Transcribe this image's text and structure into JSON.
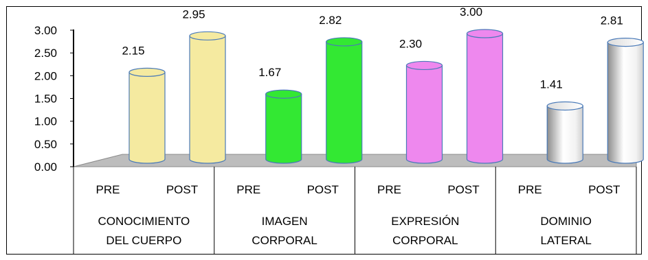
{
  "chart_data": {
    "type": "bar",
    "title": "",
    "xlabel": "",
    "ylabel": "",
    "ylim": [
      0,
      3
    ],
    "yticks": [
      "0.00",
      "0.50",
      "1.00",
      "1.50",
      "2.00",
      "2.50",
      "3.00"
    ],
    "grid": false,
    "legend": "none",
    "groups": [
      {
        "name_lines": [
          "CONOCIMIENTO",
          "DEL CUERPO"
        ],
        "color": "#f5eaa0",
        "bars": [
          {
            "label": "PRE",
            "value": 2.15,
            "value_label": "2.15"
          },
          {
            "label": "POST",
            "value": 2.95,
            "value_label": "2.95"
          }
        ]
      },
      {
        "name_lines": [
          "IMAGEN",
          "CORPORAL"
        ],
        "color": "#33e833",
        "bars": [
          {
            "label": "PRE",
            "value": 1.67,
            "value_label": "1.67"
          },
          {
            "label": "POST",
            "value": 2.82,
            "value_label": "2.82"
          }
        ]
      },
      {
        "name_lines": [
          "EXPRESIÓN",
          "CORPORAL"
        ],
        "color": "#ee88ee",
        "bars": [
          {
            "label": "PRE",
            "value": 2.3,
            "value_label": "2.30"
          },
          {
            "label": "POST",
            "value": 3.0,
            "value_label": "3.00"
          }
        ]
      },
      {
        "name_lines": [
          "DOMINIO",
          "LATERAL"
        ],
        "color": "#9a9a9a",
        "bars": [
          {
            "label": "PRE",
            "value": 1.41,
            "value_label": "1.41"
          },
          {
            "label": "POST",
            "value": 2.81,
            "value_label": "2.81"
          }
        ]
      }
    ]
  }
}
